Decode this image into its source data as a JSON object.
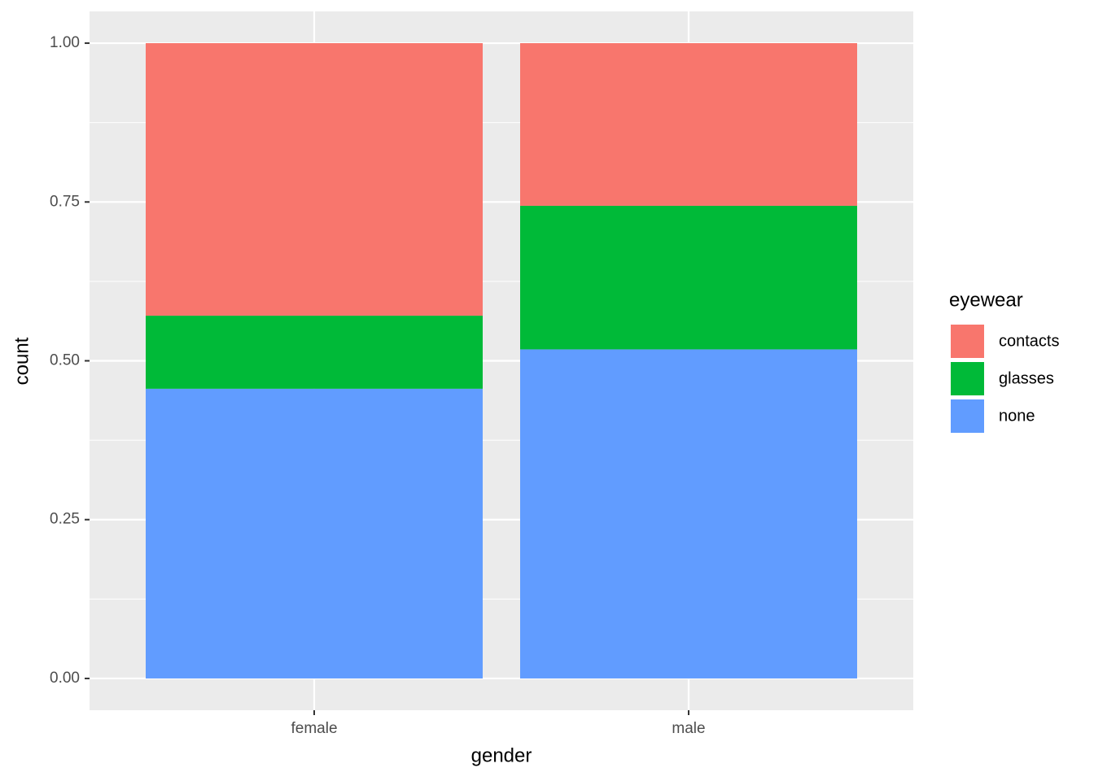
{
  "chart_data": {
    "type": "stacked_bar",
    "x_label": "gender",
    "y_label": "count",
    "legend_title": "eyewear",
    "categories": [
      "female",
      "male"
    ],
    "series": [
      {
        "name": "contacts",
        "color": "#F8766D",
        "values": [
          0.429,
          0.256
        ]
      },
      {
        "name": "glasses",
        "color": "#00BA38",
        "values": [
          0.115,
          0.226
        ]
      },
      {
        "name": "none",
        "color": "#619CFF",
        "values": [
          0.456,
          0.518
        ]
      }
    ],
    "ylim": [
      -0.05,
      1.05
    ],
    "yticks": [
      {
        "value": 0,
        "label": "0.00"
      },
      0.25,
      {
        "value": 0.5,
        "label": "0.50"
      },
      0.75,
      {
        "value": 1,
        "label": "1.00"
      }
    ],
    "grid": true
  }
}
